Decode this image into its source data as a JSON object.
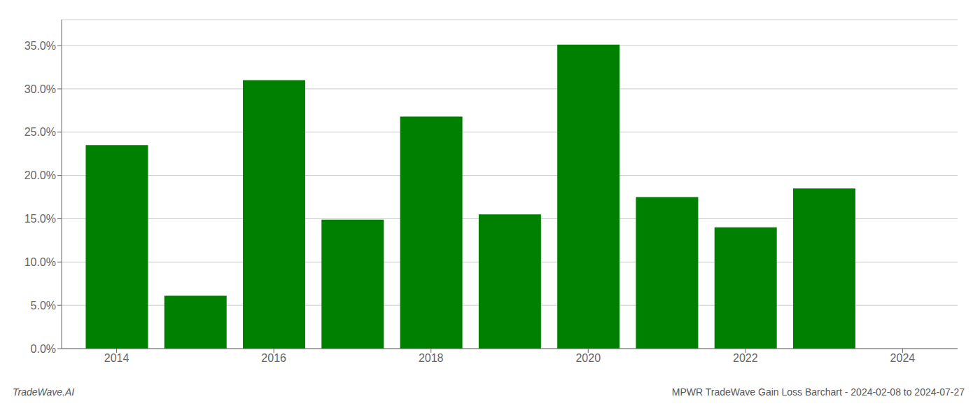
{
  "chart_data": {
    "type": "bar",
    "x": [
      2014,
      2015,
      2016,
      2017,
      2018,
      2019,
      2020,
      2021,
      2022,
      2023
    ],
    "values": [
      0.235,
      0.061,
      0.31,
      0.149,
      0.268,
      0.155,
      0.351,
      0.175,
      0.14,
      0.185
    ],
    "color": "#008000",
    "xlim": [
      2013.3,
      2024.7
    ],
    "xticks": [
      2014,
      2016,
      2018,
      2020,
      2022,
      2024
    ],
    "ylim": [
      0,
      0.38
    ],
    "yticks": [
      {
        "value": 0.0,
        "label": "0.0%"
      },
      {
        "value": 0.05,
        "label": "5.0%"
      },
      {
        "value": 0.1,
        "label": "10.0%"
      },
      {
        "value": 0.15,
        "label": "15.0%"
      },
      {
        "value": 0.2,
        "label": "20.0%"
      },
      {
        "value": 0.25,
        "label": "25.0%"
      },
      {
        "value": 0.3,
        "label": "30.0%"
      },
      {
        "value": 0.35,
        "label": "35.0%"
      }
    ],
    "grid": true,
    "annotations": [
      "TradeWave.AI",
      "MPWR TradeWave Gain Loss Barchart - 2024-02-08 to 2024-07-27"
    ]
  }
}
